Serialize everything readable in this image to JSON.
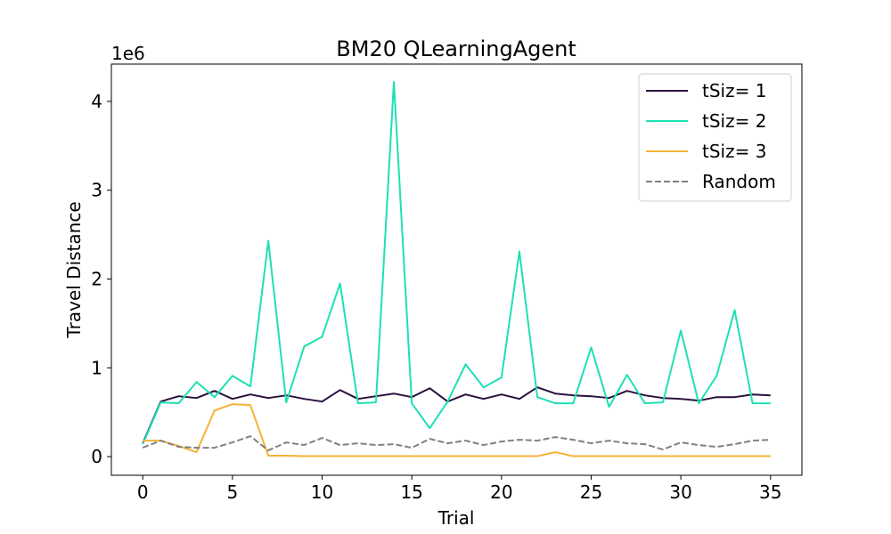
{
  "chart_data": {
    "type": "line",
    "title": "BM20  QLearningAgent",
    "xlabel": "Trial",
    "ylabel": "Travel Distance",
    "y_offset_label": "1e6",
    "xlim": [
      -1.75,
      36.75
    ],
    "ylim": [
      -0.21,
      4.42
    ],
    "x_ticks": [
      0,
      5,
      10,
      15,
      20,
      25,
      30,
      35
    ],
    "y_ticks": [
      0,
      1,
      2,
      3,
      4
    ],
    "legend_position": "top-right",
    "grid": false,
    "x": [
      0,
      1,
      2,
      3,
      4,
      5,
      6,
      7,
      8,
      9,
      10,
      11,
      12,
      13,
      14,
      15,
      16,
      17,
      18,
      19,
      20,
      21,
      22,
      23,
      24,
      25,
      26,
      27,
      28,
      29,
      30,
      31,
      32,
      33,
      34,
      35
    ],
    "series": [
      {
        "name": "tSiz= 1",
        "color": "#2a0f3d",
        "dash": "solid",
        "values": [
          0.15,
          0.62,
          0.68,
          0.66,
          0.74,
          0.65,
          0.7,
          0.66,
          0.69,
          0.65,
          0.62,
          0.75,
          0.65,
          0.68,
          0.71,
          0.67,
          0.77,
          0.62,
          0.7,
          0.65,
          0.7,
          0.65,
          0.78,
          0.71,
          0.69,
          0.68,
          0.66,
          0.74,
          0.69,
          0.66,
          0.65,
          0.63,
          0.67,
          0.67,
          0.7,
          0.69
        ]
      },
      {
        "name": "tSiz= 2",
        "color": "#1ee0b4",
        "dash": "solid",
        "values": [
          0.14,
          0.61,
          0.6,
          0.84,
          0.67,
          0.91,
          0.79,
          2.43,
          0.61,
          1.24,
          1.35,
          1.95,
          0.6,
          0.61,
          4.22,
          0.6,
          0.32,
          0.62,
          1.04,
          0.78,
          0.89,
          2.31,
          0.67,
          0.6,
          0.6,
          1.23,
          0.56,
          0.92,
          0.6,
          0.61,
          1.42,
          0.6,
          0.91,
          1.65,
          0.6,
          0.6
        ]
      },
      {
        "name": "tSiz= 3",
        "color": "#f5b235",
        "dash": "solid",
        "values": [
          0.18,
          0.18,
          0.12,
          0.05,
          0.52,
          0.59,
          0.58,
          0.01,
          0.01,
          0.005,
          0.005,
          0.005,
          0.005,
          0.005,
          0.005,
          0.005,
          0.005,
          0.005,
          0.005,
          0.005,
          0.005,
          0.005,
          0.005,
          0.05,
          0.005,
          0.005,
          0.005,
          0.005,
          0.005,
          0.005,
          0.005,
          0.005,
          0.005,
          0.005,
          0.005,
          0.005
        ]
      },
      {
        "name": "Random",
        "color": "#808080",
        "dash": "dashed",
        "values": [
          0.1,
          0.18,
          0.11,
          0.1,
          0.1,
          0.16,
          0.23,
          0.07,
          0.16,
          0.13,
          0.21,
          0.13,
          0.15,
          0.13,
          0.14,
          0.1,
          0.2,
          0.15,
          0.18,
          0.13,
          0.17,
          0.19,
          0.18,
          0.22,
          0.19,
          0.15,
          0.18,
          0.15,
          0.14,
          0.08,
          0.16,
          0.13,
          0.11,
          0.14,
          0.18,
          0.19
        ]
      }
    ]
  }
}
